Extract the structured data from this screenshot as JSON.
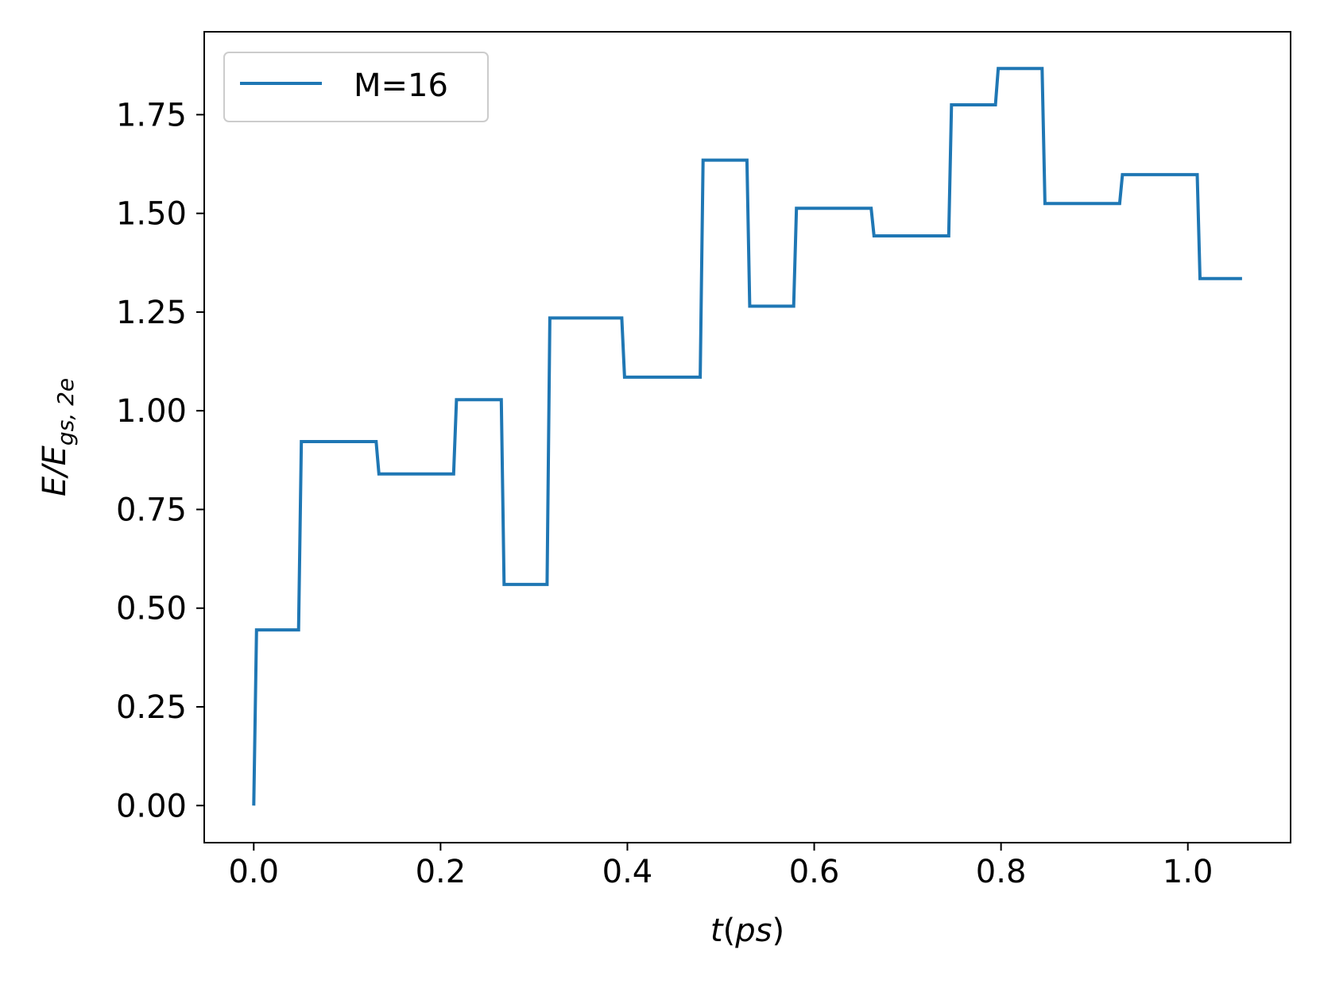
{
  "chart_data": {
    "type": "line",
    "title": "",
    "xlabel": "t(ps)",
    "ylabel": "E/E_gs,2e",
    "xlabel_parts": {
      "italic": "t",
      "paren_open": "(",
      "italic_inner": "ps",
      "paren_close": ")"
    },
    "ylabel_parts": {
      "main": "E/E",
      "subscript": "gs, 2e"
    },
    "xlim": [
      -0.053,
      1.11
    ],
    "ylim": [
      -0.094,
      1.96
    ],
    "grid": false,
    "legend_position": "upper-left",
    "x_ticks": [
      0.0,
      0.2,
      0.4,
      0.6,
      0.8,
      1.0
    ],
    "x_tick_labels": [
      "0.0",
      "0.2",
      "0.4",
      "0.6",
      "0.8",
      "1.0"
    ],
    "y_ticks": [
      0.0,
      0.25,
      0.5,
      0.75,
      1.0,
      1.25,
      1.5,
      1.75
    ],
    "y_tick_labels": [
      "0.00",
      "0.25",
      "0.50",
      "0.75",
      "1.00",
      "1.25",
      "1.50",
      "1.75"
    ],
    "series": [
      {
        "name": "M=16",
        "color": "#1f77b4",
        "x": [
          0.0,
          0.003,
          0.048,
          0.051,
          0.131,
          0.134,
          0.214,
          0.217,
          0.265,
          0.268,
          0.314,
          0.317,
          0.394,
          0.397,
          0.478,
          0.481,
          0.528,
          0.531,
          0.578,
          0.581,
          0.661,
          0.664,
          0.744,
          0.747,
          0.794,
          0.797,
          0.844,
          0.847,
          0.927,
          0.93,
          1.01,
          1.013,
          1.058
        ],
        "y": [
          0.0,
          0.445,
          0.445,
          0.922,
          0.922,
          0.84,
          0.84,
          1.028,
          1.028,
          0.56,
          0.56,
          1.235,
          1.235,
          1.085,
          1.085,
          1.635,
          1.635,
          1.265,
          1.265,
          1.513,
          1.513,
          1.443,
          1.443,
          1.775,
          1.775,
          1.867,
          1.867,
          1.525,
          1.525,
          1.598,
          1.598,
          1.335,
          1.335
        ]
      }
    ]
  }
}
